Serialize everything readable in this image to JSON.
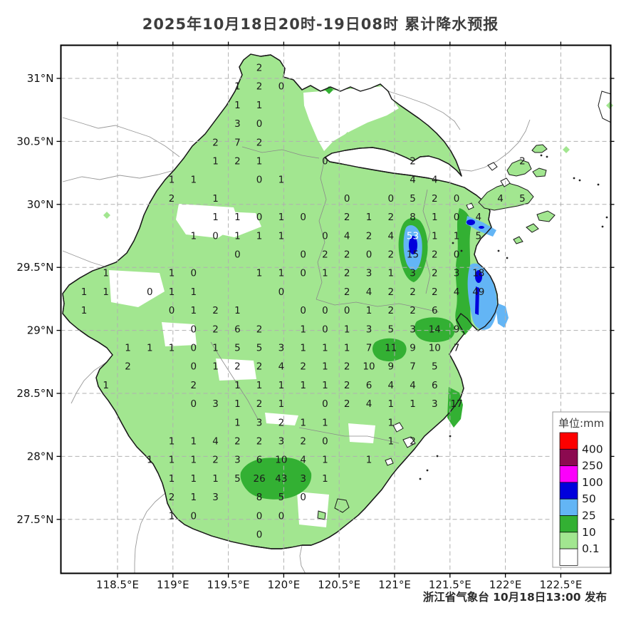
{
  "title": "2025年10月18日20时-19日08时 累计降水预报",
  "publisher": "浙江省气象台 10月18日13:00 发布",
  "axes": {
    "lat_labels": [
      "31°N",
      "30.5°N",
      "30°N",
      "29.5°N",
      "29°N",
      "28.5°N",
      "28°N",
      "27.5°N"
    ],
    "lon_labels": [
      "118.5°E",
      "119°E",
      "119.5°E",
      "120°E",
      "120.5°E",
      "121°E",
      "121.5°E",
      "122°E",
      "122.5°E"
    ]
  },
  "legend": {
    "title": "单位:mm",
    "unit": "mm",
    "swatch_colors": [
      "#FC0000",
      "#8C0A50",
      "#FB00FB",
      "#0000DC",
      "#63B5F5",
      "#33B033",
      "#A2E690",
      "#FFFFFF"
    ],
    "threshold_labels": [
      "400",
      "250",
      "100",
      "50",
      "25",
      "10",
      "0.1"
    ]
  },
  "colors": {
    "light_green": "#A2E690",
    "dark_green": "#33B033",
    "light_blue": "#63B5F5",
    "navy": "#0000DC",
    "grid_line": "#b0b0b0",
    "county_line": "#8a8a8a",
    "border_line": "#1a1a1a",
    "number_text": "#1b1b1b"
  },
  "chart_data": {
    "type": "heatmap",
    "title": "2025年10月18日20时-19日08时 累计降水预报",
    "unit": "mm",
    "legend_thresholds": [
      400,
      250,
      100,
      50,
      25,
      10,
      0.1
    ],
    "note": "grid_points are [col,row,value,(1=white text)] on a 0.2°lon x ~0.15°lat forecast grid over Zhejiang",
    "grid_points": [
      [
        9,
        1,
        "2"
      ],
      [
        8,
        2,
        "1"
      ],
      [
        9,
        2,
        "2"
      ],
      [
        10,
        2,
        "0"
      ],
      [
        8,
        3,
        "1"
      ],
      [
        9,
        3,
        "1"
      ],
      [
        8,
        4,
        "3"
      ],
      [
        9,
        4,
        "0"
      ],
      [
        7,
        5,
        "2"
      ],
      [
        8,
        5,
        "7"
      ],
      [
        9,
        5,
        "2"
      ],
      [
        7,
        6,
        "1"
      ],
      [
        8,
        6,
        "2"
      ],
      [
        9,
        6,
        "1"
      ],
      [
        12,
        6,
        "0"
      ],
      [
        16,
        6,
        "2"
      ],
      [
        21,
        6,
        "2"
      ],
      [
        5,
        7,
        "1"
      ],
      [
        6,
        7,
        "1"
      ],
      [
        9,
        7,
        "0"
      ],
      [
        10,
        7,
        "1"
      ],
      [
        16,
        7,
        "4"
      ],
      [
        17,
        7,
        "4"
      ],
      [
        5,
        8,
        "2"
      ],
      [
        7,
        8,
        "1"
      ],
      [
        13,
        8,
        "0"
      ],
      [
        15,
        8,
        "0"
      ],
      [
        16,
        8,
        "5"
      ],
      [
        17,
        8,
        "2"
      ],
      [
        18,
        8,
        "0"
      ],
      [
        20,
        8,
        "4"
      ],
      [
        21,
        8,
        "5"
      ],
      [
        7,
        9,
        "1"
      ],
      [
        8,
        9,
        "1"
      ],
      [
        9,
        9,
        "0"
      ],
      [
        10,
        9,
        "1"
      ],
      [
        11,
        9,
        "0"
      ],
      [
        13,
        9,
        "2"
      ],
      [
        14,
        9,
        "1"
      ],
      [
        15,
        9,
        "2"
      ],
      [
        16,
        9,
        "8"
      ],
      [
        17,
        9,
        "1"
      ],
      [
        18,
        9,
        "0"
      ],
      [
        19,
        9,
        "4"
      ],
      [
        6,
        10,
        "1"
      ],
      [
        7,
        10,
        "0"
      ],
      [
        8,
        10,
        "1"
      ],
      [
        9,
        10,
        "1"
      ],
      [
        10,
        10,
        "1"
      ],
      [
        12,
        10,
        "0"
      ],
      [
        13,
        10,
        "4"
      ],
      [
        14,
        10,
        "2"
      ],
      [
        15,
        10,
        "4"
      ],
      [
        16,
        10,
        "53",
        1
      ],
      [
        17,
        10,
        "1"
      ],
      [
        18,
        10,
        "1"
      ],
      [
        19,
        10,
        "5"
      ],
      [
        8,
        11,
        "0"
      ],
      [
        11,
        11,
        "0"
      ],
      [
        12,
        11,
        "2"
      ],
      [
        13,
        11,
        "2"
      ],
      [
        14,
        11,
        "0"
      ],
      [
        15,
        11,
        "2"
      ],
      [
        16,
        11,
        "15"
      ],
      [
        17,
        11,
        "2"
      ],
      [
        18,
        11,
        "0"
      ],
      [
        2,
        12,
        "1"
      ],
      [
        5,
        12,
        "1"
      ],
      [
        6,
        12,
        "0"
      ],
      [
        9,
        12,
        "1"
      ],
      [
        10,
        12,
        "1"
      ],
      [
        11,
        12,
        "0"
      ],
      [
        12,
        12,
        "1"
      ],
      [
        13,
        12,
        "2"
      ],
      [
        14,
        12,
        "3"
      ],
      [
        15,
        12,
        "1"
      ],
      [
        16,
        12,
        "3"
      ],
      [
        17,
        12,
        "2"
      ],
      [
        18,
        12,
        "3"
      ],
      [
        19,
        12,
        "18"
      ],
      [
        1,
        13,
        "1"
      ],
      [
        2,
        13,
        "1"
      ],
      [
        4,
        13,
        "0"
      ],
      [
        5,
        13,
        "1"
      ],
      [
        6,
        13,
        "1"
      ],
      [
        10,
        13,
        "0"
      ],
      [
        13,
        13,
        "2"
      ],
      [
        14,
        13,
        "4"
      ],
      [
        15,
        13,
        "2"
      ],
      [
        16,
        13,
        "2"
      ],
      [
        17,
        13,
        "2"
      ],
      [
        18,
        13,
        "4"
      ],
      [
        19,
        13,
        "49"
      ],
      [
        1,
        14,
        "1"
      ],
      [
        5,
        14,
        "0"
      ],
      [
        6,
        14,
        "1"
      ],
      [
        7,
        14,
        "2"
      ],
      [
        8,
        14,
        "1"
      ],
      [
        11,
        14,
        "0"
      ],
      [
        12,
        14,
        "0"
      ],
      [
        13,
        14,
        "0"
      ],
      [
        14,
        14,
        "1"
      ],
      [
        15,
        14,
        "2"
      ],
      [
        16,
        14,
        "2"
      ],
      [
        17,
        14,
        "6"
      ],
      [
        6,
        15,
        "0"
      ],
      [
        7,
        15,
        "2"
      ],
      [
        8,
        15,
        "6"
      ],
      [
        9,
        15,
        "2"
      ],
      [
        11,
        15,
        "1"
      ],
      [
        12,
        15,
        "0"
      ],
      [
        13,
        15,
        "1"
      ],
      [
        14,
        15,
        "3"
      ],
      [
        15,
        15,
        "5"
      ],
      [
        16,
        15,
        "3"
      ],
      [
        17,
        15,
        "14"
      ],
      [
        18,
        15,
        "9"
      ],
      [
        3,
        16,
        "1"
      ],
      [
        4,
        16,
        "1"
      ],
      [
        5,
        16,
        "1"
      ],
      [
        6,
        16,
        "0"
      ],
      [
        7,
        16,
        "1"
      ],
      [
        8,
        16,
        "5"
      ],
      [
        9,
        16,
        "5"
      ],
      [
        10,
        16,
        "3"
      ],
      [
        11,
        16,
        "1"
      ],
      [
        12,
        16,
        "1"
      ],
      [
        13,
        16,
        "1"
      ],
      [
        14,
        16,
        "7"
      ],
      [
        15,
        16,
        "11"
      ],
      [
        16,
        16,
        "9"
      ],
      [
        17,
        16,
        "10"
      ],
      [
        18,
        16,
        "7"
      ],
      [
        3,
        17,
        "2"
      ],
      [
        6,
        17,
        "0"
      ],
      [
        7,
        17,
        "1"
      ],
      [
        8,
        17,
        "2"
      ],
      [
        9,
        17,
        "2"
      ],
      [
        10,
        17,
        "4"
      ],
      [
        11,
        17,
        "2"
      ],
      [
        12,
        17,
        "1"
      ],
      [
        13,
        17,
        "2"
      ],
      [
        14,
        17,
        "10"
      ],
      [
        15,
        17,
        "9"
      ],
      [
        16,
        17,
        "7"
      ],
      [
        17,
        17,
        "5"
      ],
      [
        2,
        18,
        "1"
      ],
      [
        6,
        18,
        "2"
      ],
      [
        8,
        18,
        "1"
      ],
      [
        9,
        18,
        "1"
      ],
      [
        10,
        18,
        "1"
      ],
      [
        11,
        18,
        "1"
      ],
      [
        12,
        18,
        "1"
      ],
      [
        13,
        18,
        "2"
      ],
      [
        14,
        18,
        "6"
      ],
      [
        15,
        18,
        "4"
      ],
      [
        16,
        18,
        "4"
      ],
      [
        17,
        18,
        "6"
      ],
      [
        6,
        19,
        "0"
      ],
      [
        7,
        19,
        "3"
      ],
      [
        8,
        19,
        "1"
      ],
      [
        9,
        19,
        "2"
      ],
      [
        10,
        19,
        "1"
      ],
      [
        12,
        19,
        "0"
      ],
      [
        13,
        19,
        "2"
      ],
      [
        14,
        19,
        "4"
      ],
      [
        15,
        19,
        "1"
      ],
      [
        16,
        19,
        "1"
      ],
      [
        17,
        19,
        "3"
      ],
      [
        18,
        19,
        "17"
      ],
      [
        8,
        20,
        "1"
      ],
      [
        9,
        20,
        "3"
      ],
      [
        10,
        20,
        "2"
      ],
      [
        11,
        20,
        "1"
      ],
      [
        12,
        20,
        "1"
      ],
      [
        15,
        20,
        "1"
      ],
      [
        5,
        21,
        "1"
      ],
      [
        6,
        21,
        "1"
      ],
      [
        7,
        21,
        "4"
      ],
      [
        8,
        21,
        "2"
      ],
      [
        9,
        21,
        "2"
      ],
      [
        10,
        21,
        "3"
      ],
      [
        11,
        21,
        "2"
      ],
      [
        12,
        21,
        "0"
      ],
      [
        15,
        21,
        "1"
      ],
      [
        16,
        21,
        "2"
      ],
      [
        4,
        22,
        "1"
      ],
      [
        5,
        22,
        "1"
      ],
      [
        6,
        22,
        "1"
      ],
      [
        7,
        22,
        "2"
      ],
      [
        8,
        22,
        "3"
      ],
      [
        9,
        22,
        "6"
      ],
      [
        10,
        22,
        "10"
      ],
      [
        11,
        22,
        "4"
      ],
      [
        12,
        22,
        "1"
      ],
      [
        14,
        22,
        "1"
      ],
      [
        5,
        23,
        "1"
      ],
      [
        6,
        23,
        "1"
      ],
      [
        7,
        23,
        "1"
      ],
      [
        8,
        23,
        "5"
      ],
      [
        9,
        23,
        "26"
      ],
      [
        10,
        23,
        "43"
      ],
      [
        11,
        23,
        "3"
      ],
      [
        12,
        23,
        "1"
      ],
      [
        5,
        24,
        "2"
      ],
      [
        6,
        24,
        "1"
      ],
      [
        7,
        24,
        "3"
      ],
      [
        9,
        24,
        "8"
      ],
      [
        10,
        24,
        "5"
      ],
      [
        11,
        24,
        "0"
      ],
      [
        5,
        25,
        "1"
      ],
      [
        6,
        25,
        "0"
      ],
      [
        9,
        25,
        "0"
      ],
      [
        10,
        25,
        "0"
      ],
      [
        9,
        26,
        "0"
      ]
    ]
  }
}
